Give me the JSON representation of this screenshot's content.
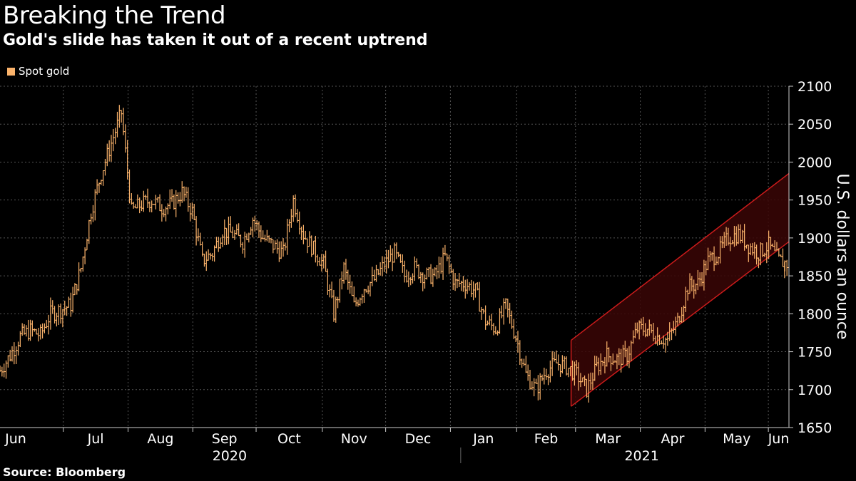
{
  "header": {
    "title": "Breaking the Trend",
    "subtitle": "Gold's slide has taken it out of a recent uptrend"
  },
  "legend": {
    "label": "Spot gold",
    "color": "#fbb36b"
  },
  "footer": {
    "source": "Source: Bloomberg"
  },
  "colors": {
    "background": "#000000",
    "series": "#fbb36b",
    "channel_fill": "#3a0606",
    "channel_line": "#cc1b1b",
    "grid": "#555555"
  },
  "chart_data": {
    "type": "ohlc",
    "title": "Breaking the Trend",
    "subtitle": "Gold's slide has taken it out of a recent uptrend",
    "ylabel": "U.S. dollars an ounce",
    "ylim": [
      1650,
      2100
    ],
    "yticks": [
      1650,
      1700,
      1750,
      1800,
      1850,
      1900,
      1950,
      2000,
      2050,
      2100
    ],
    "xrange": [
      0,
      53.6
    ],
    "months": [
      {
        "label": "Jun",
        "week": 0
      },
      {
        "label": "Jul",
        "week": 4.3
      },
      {
        "label": "Aug",
        "week": 8.7
      },
      {
        "label": "Sep",
        "week": 13.1
      },
      {
        "label": "Oct",
        "week": 17.4
      },
      {
        "label": "Nov",
        "week": 21.9
      },
      {
        "label": "Dec",
        "week": 26.2
      },
      {
        "label": "Jan",
        "week": 30.6
      },
      {
        "label": "Feb",
        "week": 35.1
      },
      {
        "label": "Mar",
        "week": 39.1
      },
      {
        "label": "Apr",
        "week": 43.5
      },
      {
        "label": "May",
        "week": 47.9
      },
      {
        "label": "Jun",
        "week": 52.2
      }
    ],
    "years": [
      {
        "label": "2020",
        "week": 15.6
      },
      {
        "label": "2021",
        "week": 43.6
      }
    ],
    "year_divider_week": 31.3,
    "series": [
      {
        "name": "Spot gold",
        "weekly_close": [
          1725,
          1745,
          1770,
          1778,
          1772,
          1800,
          1805,
          1812,
          1860,
          1935,
          1985,
          2025,
          2065,
          1935,
          1945,
          1950,
          1940,
          1945,
          1960,
          1935,
          1870,
          1880,
          1910,
          1905,
          1895,
          1925,
          1900,
          1890,
          1880,
          1950,
          1905,
          1885,
          1865,
          1800,
          1860,
          1810,
          1835,
          1845,
          1865,
          1880,
          1850,
          1860,
          1850,
          1850,
          1875,
          1840,
          1840,
          1830,
          1790,
          1780,
          1810,
          1770,
          1720,
          1700,
          1725,
          1735,
          1730,
          1720,
          1700,
          1730,
          1745,
          1740,
          1745,
          1780,
          1780,
          1770,
          1765,
          1790,
          1835,
          1840,
          1870,
          1880,
          1900,
          1905,
          1890,
          1880,
          1890,
          1870,
          1865
        ]
      }
    ],
    "trend_channel": {
      "start_week": 38.8,
      "end_week": 53.6,
      "upper": [
        1765,
        1985
      ],
      "lower": [
        1678,
        1895
      ]
    }
  }
}
